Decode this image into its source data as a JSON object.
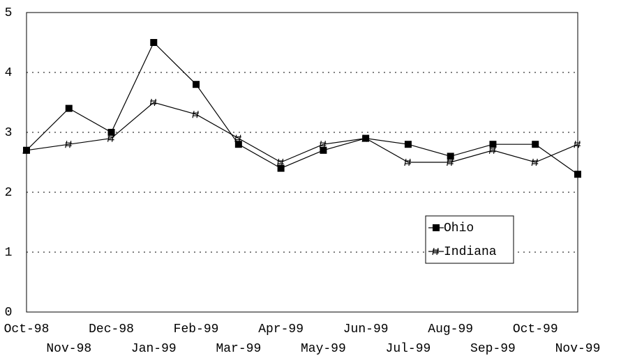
{
  "chart_data": {
    "type": "line",
    "categories": [
      "Oct-98",
      "Nov-98",
      "Dec-98",
      "Jan-99",
      "Feb-99",
      "Mar-99",
      "Apr-99",
      "May-99",
      "Jun-99",
      "Jul-99",
      "Aug-99",
      "Sep-99",
      "Oct-99",
      "Nov-99"
    ],
    "series": [
      {
        "name": "Ohio",
        "color": "#000000",
        "marker": "square",
        "values": [
          2.7,
          3.4,
          3.0,
          4.5,
          3.8,
          2.8,
          2.4,
          2.7,
          2.9,
          2.8,
          2.6,
          2.8,
          2.8,
          2.3
        ]
      },
      {
        "name": "Indiana",
        "color": "#000000",
        "marker": "hash",
        "values": [
          2.7,
          2.8,
          2.9,
          3.5,
          3.3,
          2.9,
          2.5,
          2.8,
          2.9,
          2.5,
          2.5,
          2.7,
          2.5,
          2.8
        ]
      }
    ],
    "ylim": [
      0,
      5
    ],
    "yticks": [
      0,
      1,
      2,
      3,
      4,
      5
    ],
    "grid": true,
    "legend": "lower right"
  }
}
